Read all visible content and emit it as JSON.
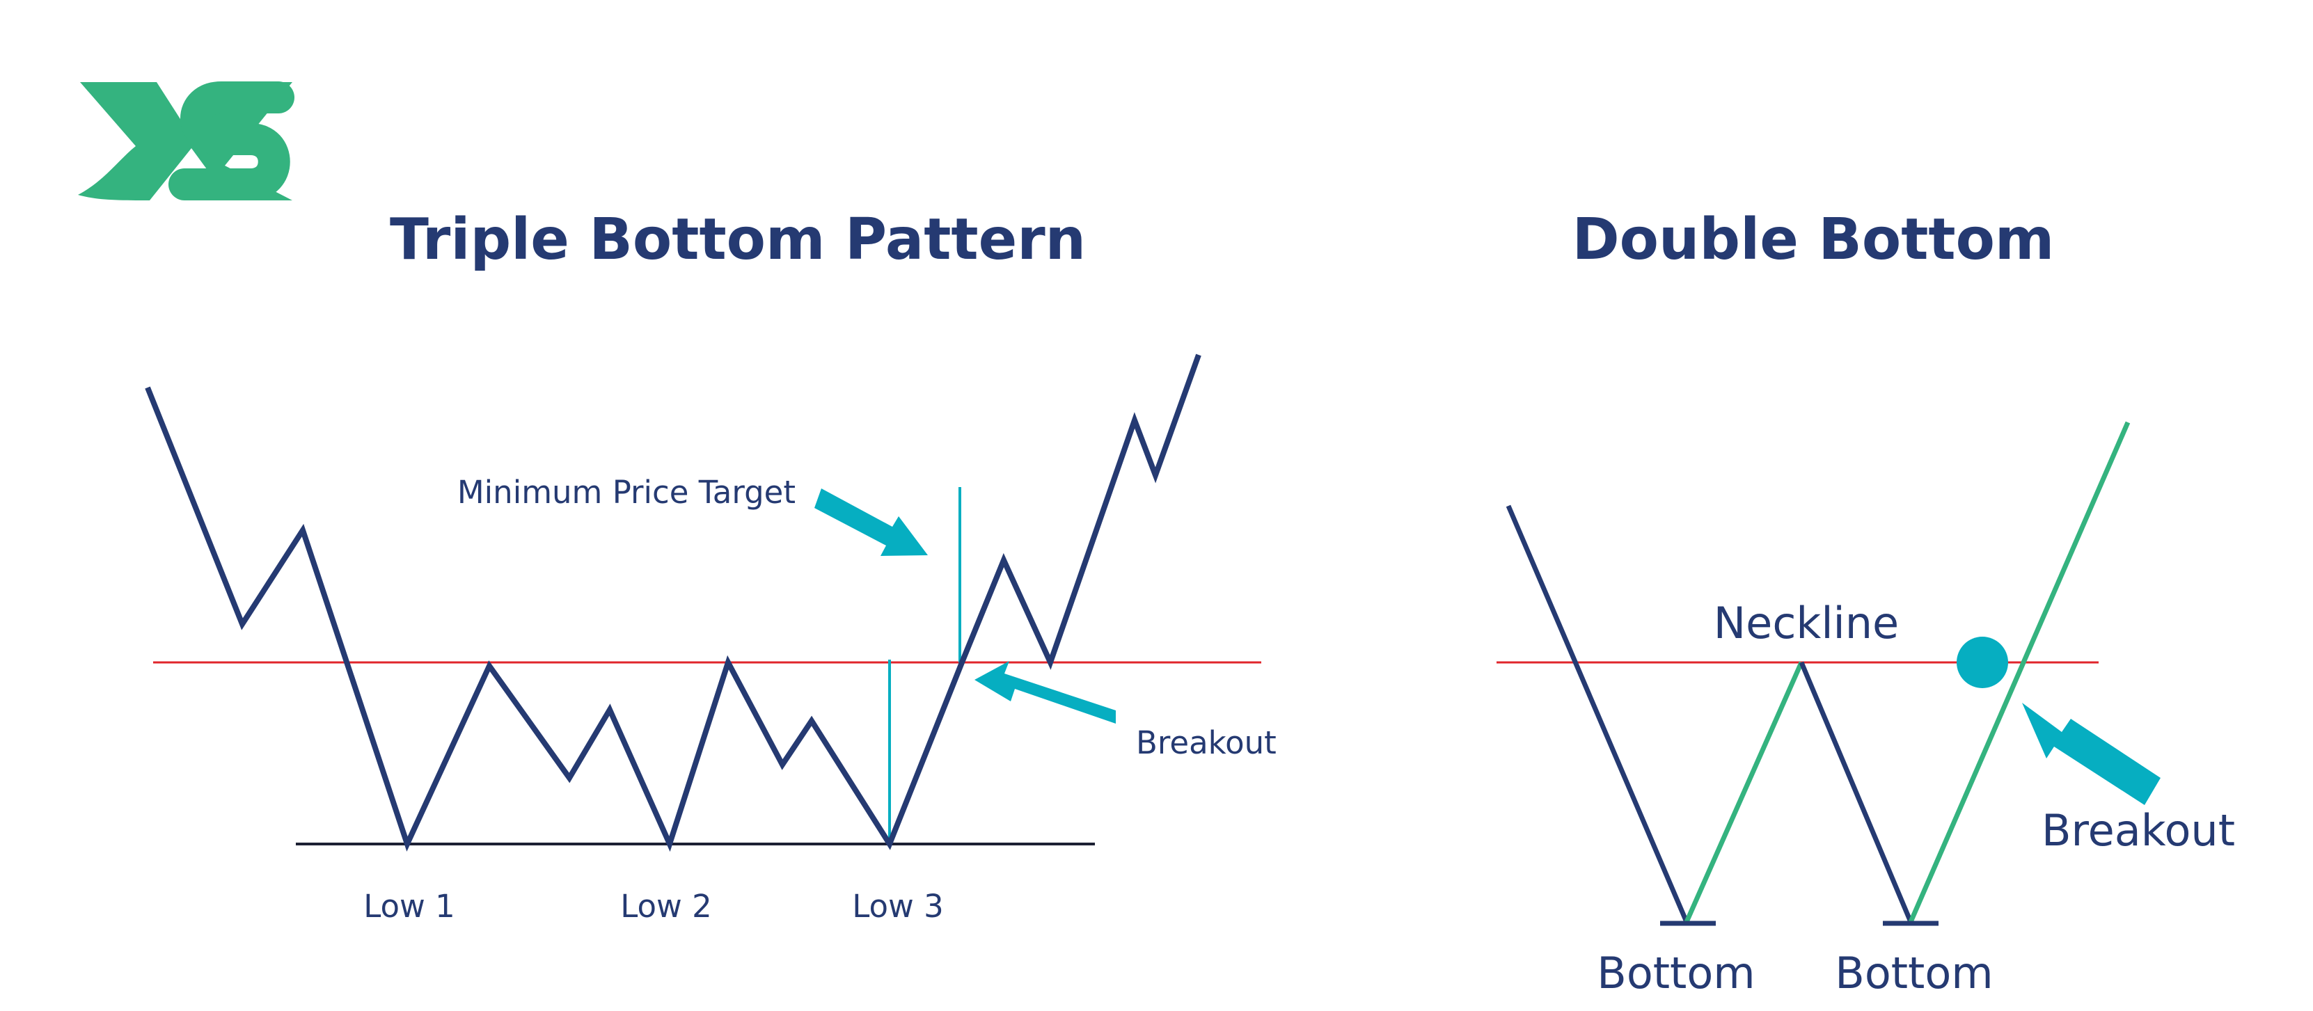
{
  "logo": {
    "text": "XS",
    "color": "#34b37f"
  },
  "colors": {
    "navy": "#253a72",
    "green": "#34b37f",
    "teal": "#06aec1",
    "red": "#e0252b",
    "support": "#1c2033"
  },
  "triple_bottom": {
    "title": "Triple Bottom Pattern",
    "min_price_target_label": "Minimum Price Target",
    "breakout_label": "Breakout",
    "lows": [
      "Low 1",
      "Low 2",
      "Low 3"
    ]
  },
  "double_bottom": {
    "title": "Double Bottom",
    "neckline_label": "Neckline",
    "breakout_label": "Breakout",
    "bottoms": [
      "Bottom",
      "Bottom"
    ]
  }
}
